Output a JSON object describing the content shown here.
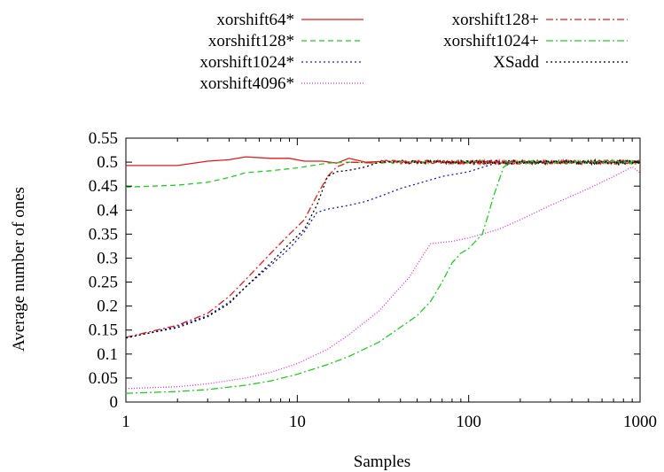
{
  "chart_data": {
    "type": "line",
    "xlabel": "Samples",
    "ylabel": "Average number of ones",
    "xscale": "log",
    "xlim": [
      1,
      1000
    ],
    "ylim": [
      0,
      0.55
    ],
    "xticks": [
      1,
      10,
      100,
      1000
    ],
    "xtick_labels": [
      "1",
      "10",
      "100",
      "1000"
    ],
    "yticks": [
      0,
      0.05,
      0.1,
      0.15,
      0.2,
      0.25,
      0.3,
      0.35,
      0.4,
      0.45,
      0.5,
      0.55
    ],
    "ytick_labels": [
      "0",
      "0.05",
      "0.1",
      "0.15",
      "0.2",
      "0.25",
      "0.3",
      "0.35",
      "0.4",
      "0.45",
      "0.5",
      "0.55"
    ],
    "grid": false,
    "legend_position": "top",
    "series": [
      {
        "name": "xorshift64*",
        "color": "#e41a1c",
        "dash": "solid",
        "noise": 0.004,
        "x": [
          1,
          2,
          3,
          4,
          5,
          7,
          9,
          11,
          14,
          17,
          20,
          25,
          30,
          1000
        ],
        "y": [
          0.493,
          0.493,
          0.502,
          0.505,
          0.511,
          0.508,
          0.508,
          0.502,
          0.502,
          0.498,
          0.508,
          0.5,
          0.5,
          0.5
        ]
      },
      {
        "name": "xorshift128*",
        "color": "#22cc22",
        "dash": "6,4",
        "noise": 0.003,
        "x": [
          1,
          2,
          3,
          4,
          5,
          7,
          10,
          15,
          20,
          30,
          1000
        ],
        "y": [
          0.448,
          0.452,
          0.458,
          0.468,
          0.478,
          0.482,
          0.488,
          0.498,
          0.5,
          0.5,
          0.5
        ]
      },
      {
        "name": "xorshift1024*",
        "color": "#1a1acc",
        "dash": "2,3",
        "noise": 0.002,
        "x": [
          1,
          2,
          3,
          4,
          5,
          7,
          9,
          11,
          13,
          15,
          20,
          25,
          30,
          40,
          50,
          70,
          100,
          150,
          200,
          1000
        ],
        "y": [
          0.133,
          0.158,
          0.18,
          0.208,
          0.24,
          0.285,
          0.32,
          0.355,
          0.395,
          0.402,
          0.41,
          0.418,
          0.428,
          0.445,
          0.455,
          0.47,
          0.48,
          0.5,
          0.5,
          0.5
        ]
      },
      {
        "name": "xorshift4096*",
        "color": "#ee22ee",
        "dash": "1,2",
        "noise": 0.0,
        "x": [
          1,
          2,
          3,
          5,
          7,
          10,
          15,
          20,
          30,
          45,
          55,
          60,
          80,
          100,
          150,
          200,
          300,
          500,
          700,
          900,
          1000
        ],
        "y": [
          0.028,
          0.032,
          0.038,
          0.05,
          0.062,
          0.08,
          0.11,
          0.14,
          0.19,
          0.26,
          0.31,
          0.33,
          0.335,
          0.342,
          0.36,
          0.38,
          0.41,
          0.445,
          0.47,
          0.49,
          0.478
        ]
      },
      {
        "name": "xorshift128+",
        "color": "#e41a1c",
        "dash": "8,3,2,3",
        "noise": 0.004,
        "x": [
          1,
          2,
          3,
          4,
          5,
          7,
          9,
          11,
          13,
          15,
          17,
          20,
          30,
          1000
        ],
        "y": [
          0.135,
          0.16,
          0.185,
          0.22,
          0.255,
          0.31,
          0.35,
          0.38,
          0.43,
          0.47,
          0.49,
          0.5,
          0.5,
          0.5
        ]
      },
      {
        "name": "xorshift1024+",
        "color": "#22cc22",
        "dash": "8,3,2,3",
        "noise": 0.003,
        "x": [
          1,
          2,
          3,
          5,
          7,
          10,
          15,
          20,
          30,
          50,
          60,
          70,
          80,
          90,
          100,
          120,
          130,
          140,
          160,
          180,
          200,
          1000
        ],
        "y": [
          0.018,
          0.022,
          0.026,
          0.035,
          0.044,
          0.058,
          0.078,
          0.095,
          0.125,
          0.18,
          0.21,
          0.25,
          0.29,
          0.31,
          0.32,
          0.35,
          0.39,
          0.43,
          0.49,
          0.5,
          0.5,
          0.5
        ]
      },
      {
        "name": "XSadd",
        "color": "#000000",
        "dash": "2,3",
        "noise": 0.004,
        "x": [
          1,
          2,
          3,
          4,
          5,
          7,
          9,
          11,
          13,
          15,
          17,
          20,
          25,
          30,
          40,
          1000
        ],
        "y": [
          0.134,
          0.155,
          0.178,
          0.205,
          0.24,
          0.29,
          0.33,
          0.36,
          0.41,
          0.47,
          0.48,
          0.483,
          0.49,
          0.5,
          0.5,
          0.5
        ]
      }
    ]
  }
}
